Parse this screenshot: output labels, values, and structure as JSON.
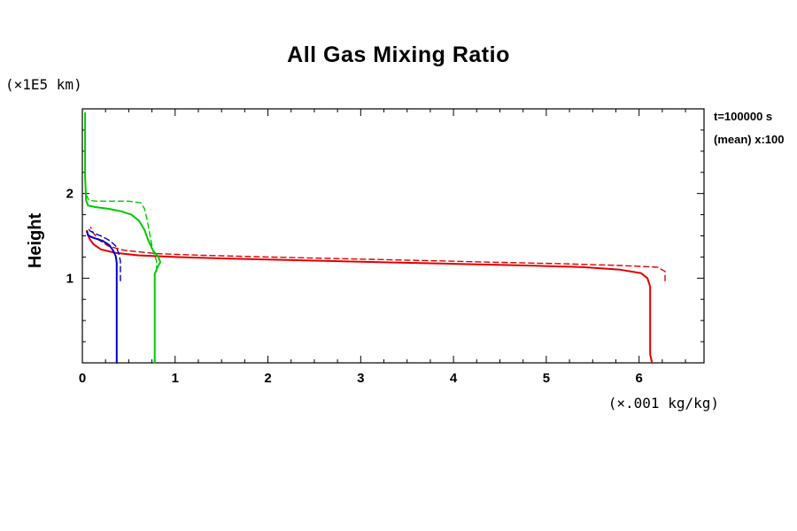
{
  "chart_data": {
    "type": "line",
    "title": "All Gas Mixing Ratio",
    "ylabel": "Height",
    "y_unit": "(×1E5 km)",
    "x_unit": "(×.001 kg/kg)",
    "annotations": [
      "t=100000 s",
      "(mean) x:100"
    ],
    "xlim": [
      0,
      6.7
    ],
    "ylim": [
      0,
      3.0
    ],
    "x_ticks": [
      0,
      1,
      2,
      3,
      4,
      5,
      6
    ],
    "y_ticks": [
      1,
      2
    ],
    "x_minor_step": 0.25,
    "y_minor_step": 0.25,
    "grid": false,
    "axis_color": "#000000",
    "series": [
      {
        "name": "gas-red-instant",
        "color": "#e00000",
        "style": "solid",
        "width": 2,
        "points": [
          [
            6.14,
            0.0
          ],
          [
            6.12,
            0.1
          ],
          [
            6.12,
            0.6
          ],
          [
            6.12,
            0.9
          ],
          [
            6.09,
            1.0
          ],
          [
            6.02,
            1.06
          ],
          [
            5.8,
            1.1
          ],
          [
            5.4,
            1.13
          ],
          [
            4.8,
            1.15
          ],
          [
            4.0,
            1.17
          ],
          [
            3.2,
            1.19
          ],
          [
            2.4,
            1.21
          ],
          [
            1.6,
            1.23
          ],
          [
            1.0,
            1.25
          ],
          [
            0.6,
            1.27
          ],
          [
            0.35,
            1.3
          ],
          [
            0.2,
            1.34
          ],
          [
            0.12,
            1.4
          ],
          [
            0.08,
            1.46
          ],
          [
            0.06,
            1.51
          ],
          [
            0.05,
            1.56
          ]
        ]
      },
      {
        "name": "gas-red-mean",
        "color": "#e00000",
        "style": "dashed",
        "width": 1.4,
        "points": [
          [
            6.28,
            0.97
          ],
          [
            6.28,
            1.08
          ],
          [
            6.2,
            1.13
          ],
          [
            5.8,
            1.15
          ],
          [
            5.2,
            1.17
          ],
          [
            4.4,
            1.19
          ],
          [
            3.6,
            1.21
          ],
          [
            2.8,
            1.23
          ],
          [
            2.0,
            1.25
          ],
          [
            1.3,
            1.27
          ],
          [
            0.8,
            1.29
          ],
          [
            0.45,
            1.33
          ],
          [
            0.28,
            1.38
          ],
          [
            0.18,
            1.45
          ],
          [
            0.12,
            1.53
          ],
          [
            0.09,
            1.6
          ]
        ]
      },
      {
        "name": "gas-green-instant",
        "color": "#00c800",
        "style": "solid",
        "width": 2,
        "points": [
          [
            0.78,
            0.0
          ],
          [
            0.78,
            0.8
          ],
          [
            0.78,
            1.05
          ],
          [
            0.81,
            1.13
          ],
          [
            0.84,
            1.19
          ],
          [
            0.82,
            1.25
          ],
          [
            0.76,
            1.33
          ],
          [
            0.71,
            1.45
          ],
          [
            0.67,
            1.57
          ],
          [
            0.61,
            1.68
          ],
          [
            0.53,
            1.75
          ],
          [
            0.42,
            1.79
          ],
          [
            0.28,
            1.82
          ],
          [
            0.14,
            1.84
          ],
          [
            0.06,
            1.86
          ],
          [
            0.04,
            1.92
          ],
          [
            0.03,
            2.2
          ],
          [
            0.03,
            2.95
          ]
        ]
      },
      {
        "name": "gas-green-mean",
        "color": "#00c800",
        "style": "dashed",
        "width": 1.4,
        "points": [
          [
            0.8,
            1.08
          ],
          [
            0.8,
            1.2
          ],
          [
            0.76,
            1.33
          ],
          [
            0.73,
            1.5
          ],
          [
            0.7,
            1.68
          ],
          [
            0.67,
            1.82
          ],
          [
            0.63,
            1.89
          ],
          [
            0.5,
            1.91
          ],
          [
            0.32,
            1.91
          ],
          [
            0.15,
            1.91
          ],
          [
            0.07,
            1.92
          ],
          [
            0.05,
            1.97
          ]
        ]
      },
      {
        "name": "gas-blue-instant",
        "color": "#0000c8",
        "style": "solid",
        "width": 2,
        "points": [
          [
            0.37,
            0.0
          ],
          [
            0.37,
            0.8
          ],
          [
            0.37,
            1.18
          ],
          [
            0.36,
            1.26
          ],
          [
            0.33,
            1.33
          ],
          [
            0.29,
            1.39
          ],
          [
            0.22,
            1.44
          ],
          [
            0.14,
            1.47
          ],
          [
            0.09,
            1.49
          ],
          [
            0.06,
            1.51
          ],
          [
            0.05,
            1.55
          ]
        ]
      },
      {
        "name": "gas-blue-mean",
        "color": "#0000c8",
        "style": "dashed",
        "width": 1.4,
        "points": [
          [
            0.41,
            0.97
          ],
          [
            0.41,
            1.2
          ],
          [
            0.39,
            1.3
          ],
          [
            0.36,
            1.38
          ],
          [
            0.3,
            1.44
          ],
          [
            0.22,
            1.49
          ],
          [
            0.13,
            1.53
          ],
          [
            0.08,
            1.56
          ],
          [
            0.06,
            1.6
          ]
        ]
      }
    ]
  }
}
